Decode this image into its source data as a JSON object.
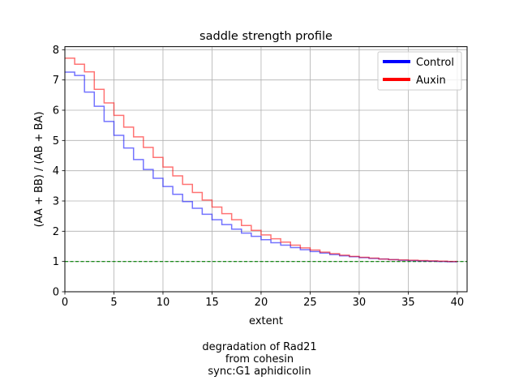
{
  "chart_data": {
    "type": "line",
    "title": "saddle strength profile",
    "xlabel": "extent",
    "ylabel": "(AA + BB) / (AB + BA)",
    "xlim": [
      0,
      41
    ],
    "ylim": [
      0,
      8.1
    ],
    "xticks": [
      0,
      5,
      10,
      15,
      20,
      25,
      30,
      35,
      40
    ],
    "yticks": [
      0,
      1,
      2,
      3,
      4,
      5,
      6,
      7,
      8
    ],
    "grid": true,
    "legend_position": "top-right",
    "step": "post",
    "reference_line": {
      "y": 1,
      "color": "#008000",
      "style": "dashed"
    },
    "series": [
      {
        "name": "Control",
        "color": "#0000ff",
        "x": [
          0,
          1,
          2,
          3,
          4,
          5,
          6,
          7,
          8,
          9,
          10,
          11,
          12,
          13,
          14,
          15,
          16,
          17,
          18,
          19,
          20,
          21,
          22,
          23,
          24,
          25,
          26,
          27,
          28,
          29,
          30,
          31,
          32,
          33,
          34,
          35,
          36,
          37,
          38,
          39
        ],
        "values": [
          7.26,
          7.15,
          6.6,
          6.13,
          5.63,
          5.17,
          4.75,
          4.37,
          4.04,
          3.75,
          3.48,
          3.22,
          2.98,
          2.76,
          2.56,
          2.38,
          2.22,
          2.07,
          1.94,
          1.83,
          1.72,
          1.62,
          1.54,
          1.46,
          1.39,
          1.33,
          1.28,
          1.23,
          1.19,
          1.16,
          1.13,
          1.1,
          1.08,
          1.06,
          1.04,
          1.03,
          1.02,
          1.01,
          1.0,
          0.99
        ]
      },
      {
        "name": "Auxin",
        "color": "#ff0000",
        "x": [
          0,
          1,
          2,
          3,
          4,
          5,
          6,
          7,
          8,
          9,
          10,
          11,
          12,
          13,
          14,
          15,
          16,
          17,
          18,
          19,
          20,
          21,
          22,
          23,
          24,
          25,
          26,
          27,
          28,
          29,
          30,
          31,
          32,
          33,
          34,
          35,
          36,
          37,
          38,
          39
        ],
        "values": [
          7.72,
          7.52,
          7.27,
          6.69,
          6.24,
          5.83,
          5.44,
          5.12,
          4.77,
          4.44,
          4.12,
          3.83,
          3.55,
          3.28,
          3.03,
          2.8,
          2.58,
          2.38,
          2.19,
          2.03,
          1.88,
          1.75,
          1.64,
          1.54,
          1.45,
          1.38,
          1.31,
          1.26,
          1.21,
          1.17,
          1.14,
          1.11,
          1.08,
          1.06,
          1.05,
          1.04,
          1.03,
          1.02,
          1.01,
          1.0
        ]
      }
    ]
  },
  "caption": {
    "line1": "degradation of Rad21",
    "line2": "from cohesin",
    "line3": "sync:G1 aphidicolin"
  }
}
